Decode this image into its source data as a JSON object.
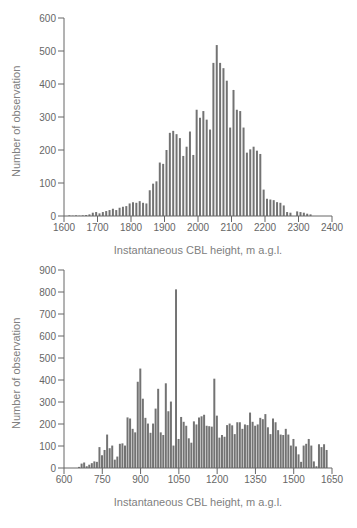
{
  "chart_data": [
    {
      "type": "bar",
      "xlabel": "Instantaneous CBL height, m a.g.l.",
      "ylabel": "Number of observation",
      "xlim": [
        1600,
        2400
      ],
      "ylim": [
        0,
        600
      ],
      "xticks": [
        1600,
        1700,
        1800,
        1900,
        2000,
        2100,
        2200,
        2300,
        2400
      ],
      "yticks": [
        0,
        100,
        200,
        300,
        400,
        500,
        600
      ],
      "color": "#737373",
      "grid": false,
      "x": [
        1615,
        1625,
        1635,
        1645,
        1655,
        1665,
        1675,
        1685,
        1695,
        1705,
        1715,
        1725,
        1735,
        1745,
        1755,
        1765,
        1775,
        1785,
        1795,
        1805,
        1815,
        1825,
        1835,
        1845,
        1855,
        1865,
        1875,
        1885,
        1895,
        1905,
        1915,
        1925,
        1935,
        1945,
        1955,
        1965,
        1975,
        1985,
        1995,
        2005,
        2015,
        2025,
        2035,
        2045,
        2055,
        2065,
        2075,
        2085,
        2095,
        2105,
        2115,
        2125,
        2135,
        2145,
        2155,
        2165,
        2175,
        2185,
        2195,
        2205,
        2215,
        2225,
        2235,
        2245,
        2255,
        2265,
        2275,
        2295,
        2305,
        2315,
        2325,
        2335
      ],
      "values": [
        2,
        1,
        2,
        1,
        2,
        3,
        5,
        10,
        12,
        8,
        12,
        15,
        18,
        22,
        18,
        25,
        28,
        30,
        38,
        42,
        40,
        45,
        40,
        38,
        78,
        98,
        105,
        162,
        158,
        200,
        252,
        258,
        248,
        236,
        182,
        210,
        256,
        185,
        322,
        298,
        318,
        292,
        262,
        464,
        518,
        464,
        448,
        410,
        268,
        382,
        322,
        318,
        268,
        192,
        202,
        210,
        198,
        188,
        80,
        52,
        50,
        48,
        42,
        40,
        32,
        12,
        10,
        14,
        12,
        10,
        7,
        5
      ]
    },
    {
      "type": "bar",
      "xlabel": "Instantaneous CBL height, m a.g.l.",
      "ylabel": "Number of observation",
      "xlim": [
        600,
        1650
      ],
      "ylim": [
        0,
        900
      ],
      "xticks": [
        600,
        750,
        900,
        1050,
        1200,
        1350,
        1500,
        1650
      ],
      "yticks": [
        0,
        100,
        200,
        300,
        400,
        500,
        600,
        700,
        800,
        900
      ],
      "color": "#737373",
      "grid": false,
      "x": [
        660,
        670,
        680,
        690,
        700,
        710,
        720,
        730,
        740,
        750,
        760,
        770,
        780,
        790,
        800,
        810,
        820,
        830,
        840,
        850,
        860,
        870,
        880,
        890,
        900,
        910,
        920,
        930,
        940,
        950,
        960,
        970,
        980,
        990,
        1000,
        1010,
        1020,
        1030,
        1040,
        1050,
        1060,
        1070,
        1080,
        1090,
        1100,
        1110,
        1120,
        1130,
        1140,
        1150,
        1160,
        1170,
        1180,
        1190,
        1200,
        1210,
        1220,
        1230,
        1240,
        1250,
        1260,
        1270,
        1280,
        1290,
        1300,
        1310,
        1320,
        1330,
        1340,
        1350,
        1360,
        1370,
        1380,
        1390,
        1400,
        1410,
        1420,
        1430,
        1440,
        1450,
        1460,
        1470,
        1480,
        1490,
        1500,
        1510,
        1520,
        1530,
        1540,
        1550,
        1560,
        1570,
        1580,
        1590,
        1600,
        1610,
        1620,
        1630
      ],
      "values": [
        5,
        20,
        25,
        8,
        15,
        22,
        30,
        28,
        95,
        58,
        82,
        152,
        90,
        102,
        38,
        52,
        110,
        112,
        102,
        230,
        225,
        178,
        162,
        392,
        452,
        315,
        228,
        202,
        160,
        202,
        270,
        360,
        162,
        150,
        385,
        258,
        302,
        102,
        812,
        132,
        232,
        210,
        192,
        135,
        115,
        212,
        198,
        230,
        235,
        242,
        192,
        190,
        188,
        406,
        238,
        138,
        150,
        142,
        195,
        202,
        194,
        154,
        208,
        208,
        178,
        198,
        195,
        252,
        210,
        192,
        198,
        228,
        222,
        245,
        185,
        154,
        225,
        208,
        172,
        152,
        150,
        178,
        152,
        102,
        132,
        98,
        62,
        28,
        102,
        110,
        132,
        102,
        30,
        8,
        108,
        95,
        108,
        82
      ]
    }
  ]
}
